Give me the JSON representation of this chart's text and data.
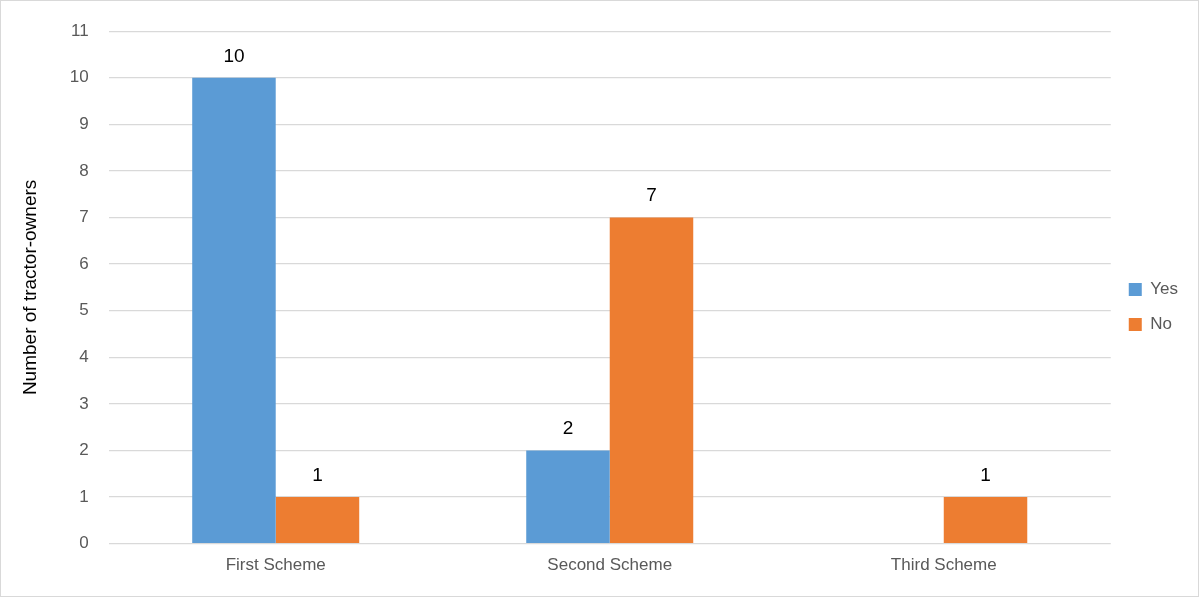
{
  "chart_data": {
    "type": "bar",
    "ylabel": "Number of tractor-owners",
    "categories": [
      "First Scheme",
      "Second Scheme",
      "Third Scheme"
    ],
    "series": [
      {
        "name": "Yes",
        "color": "#5b9bd5",
        "values": [
          10,
          2,
          null
        ]
      },
      {
        "name": "No",
        "color": "#ed7d31",
        "values": [
          1,
          7,
          1
        ]
      }
    ],
    "ylim": [
      0,
      11
    ],
    "yticks": [
      0,
      1,
      2,
      3,
      4,
      5,
      6,
      7,
      8,
      9,
      10,
      11
    ],
    "grid": "y",
    "legend": "right",
    "data_labels": true
  }
}
